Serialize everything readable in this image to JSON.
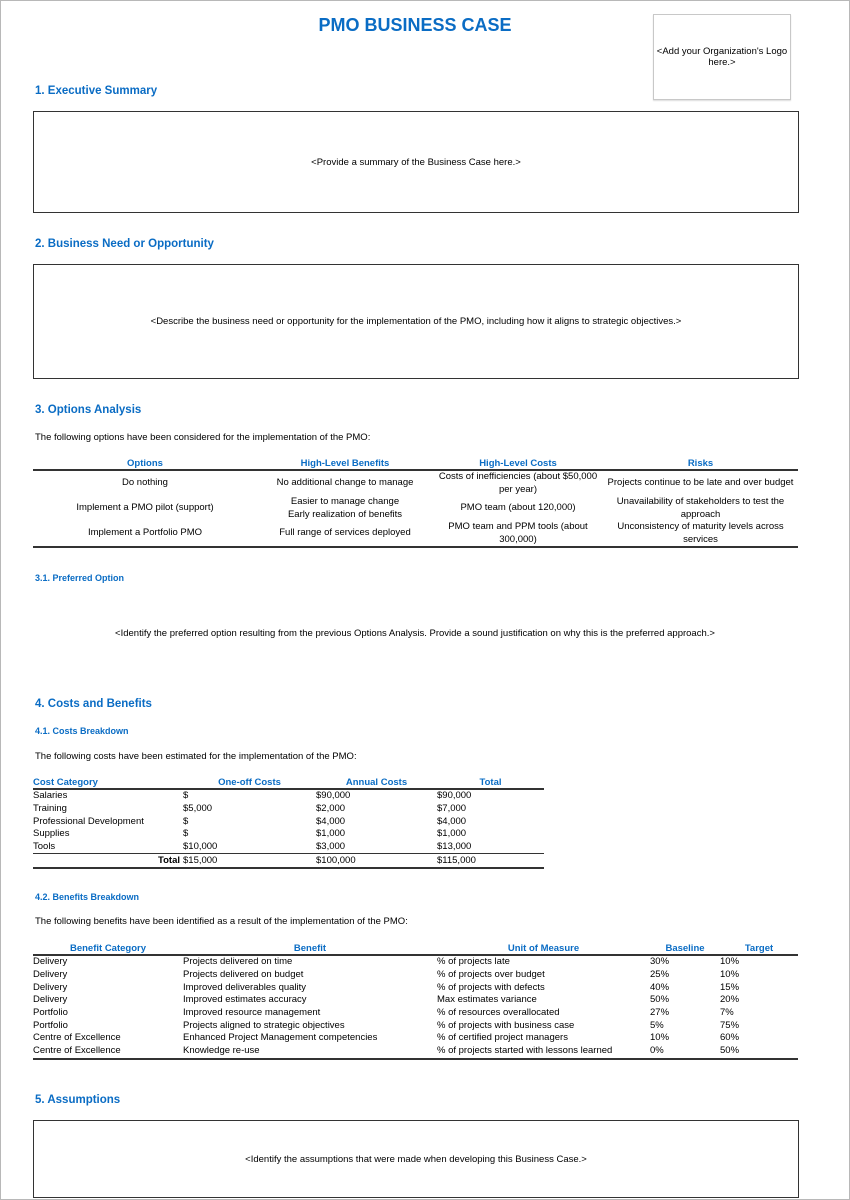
{
  "title": "PMO BUSINESS CASE",
  "logo_placeholder": "<Add your Organization's Logo here.>",
  "sections": {
    "exec": {
      "heading": "1. Executive Summary",
      "placeholder": "<Provide a summary of the Business Case here.>"
    },
    "need": {
      "heading": "2. Business Need or Opportunity",
      "placeholder": "<Describe the business need or opportunity for the implementation of the PMO, including how it aligns to strategic objectives.>"
    },
    "options": {
      "heading": "3. Options Analysis",
      "intro": "The following options have been considered for the implementation of the PMO:",
      "headers": [
        "Options",
        "High-Level Benefits",
        "High-Level Costs",
        "Risks"
      ],
      "rows": [
        [
          "Do nothing",
          "No additional change to manage",
          "Costs of inefficiencies (about $50,000 per year)",
          "Projects continue to be late and over budget"
        ],
        [
          "Implement a PMO pilot (support)",
          "Easier to manage change\nEarly realization of benefits",
          "PMO team (about 120,000)",
          "Unavailability of stakeholders to test the approach"
        ],
        [
          "Implement a Portfolio PMO",
          "Full range of services deployed",
          "PMO team and PPM tools (about 300,000)",
          "Unconsistency of maturity levels across services"
        ]
      ]
    },
    "preferred": {
      "heading": "3.1. Preferred Option",
      "placeholder": "<Identify the preferred option resulting from the previous Options Analysis. Provide a sound justification on why this is the preferred approach.>"
    },
    "costs_benefits": {
      "heading": "4. Costs and Benefits"
    },
    "costs": {
      "heading": "4.1. Costs Breakdown",
      "intro": "The following costs have been estimated for the implementation of the PMO:",
      "headers": [
        "Cost Category",
        "One-off Costs",
        "Annual Costs",
        "Total"
      ],
      "rows": [
        [
          "Salaries",
          "$",
          "$90,000",
          "$90,000"
        ],
        [
          "Training",
          "$5,000",
          "$2,000",
          "$7,000"
        ],
        [
          "Professional Development",
          "$",
          "$4,000",
          "$4,000"
        ],
        [
          "Supplies",
          "$",
          "$1,000",
          "$1,000"
        ],
        [
          "Tools",
          "$10,000",
          "$3,000",
          "$13,000"
        ]
      ],
      "total": [
        "Total",
        "$15,000",
        "$100,000",
        "$115,000"
      ]
    },
    "benefits": {
      "heading": "4.2. Benefits Breakdown",
      "intro": "The following benefits have been identified as a result of the implementation of the PMO:",
      "headers": [
        "Benefit Category",
        "Benefit",
        "Unit of Measure",
        "Baseline",
        "Target"
      ],
      "rows": [
        [
          "Delivery",
          "Projects delivered on time",
          "% of projects late",
          "30%",
          "10%"
        ],
        [
          "Delivery",
          "Projects delivered on budget",
          "% of projects over budget",
          "25%",
          "10%"
        ],
        [
          "Delivery",
          "Improved deliverables quality",
          "% of projects with defects",
          "40%",
          "15%"
        ],
        [
          "Delivery",
          "Improved estimates accuracy",
          "Max estimates variance",
          "50%",
          "20%"
        ],
        [
          "Portfolio",
          "Improved resource management",
          "% of resources overallocated",
          "27%",
          "7%"
        ],
        [
          "Portfolio",
          "Projects aligned to strategic objectives",
          "% of projects with business case",
          "5%",
          "75%"
        ],
        [
          "Centre of Excellence",
          "Enhanced Project Management competencies",
          "% of certified project managers",
          "10%",
          "60%"
        ],
        [
          "Centre of Excellence",
          "Knowledge re-use",
          "% of projects started with lessons learned",
          "0%",
          "50%"
        ]
      ]
    },
    "assumptions": {
      "heading": "5. Assumptions",
      "placeholder": "<Identify the assumptions that were made when developing this Business Case.>"
    }
  },
  "colors": {
    "accent": "#0a6cc4",
    "rule": "#333333"
  }
}
